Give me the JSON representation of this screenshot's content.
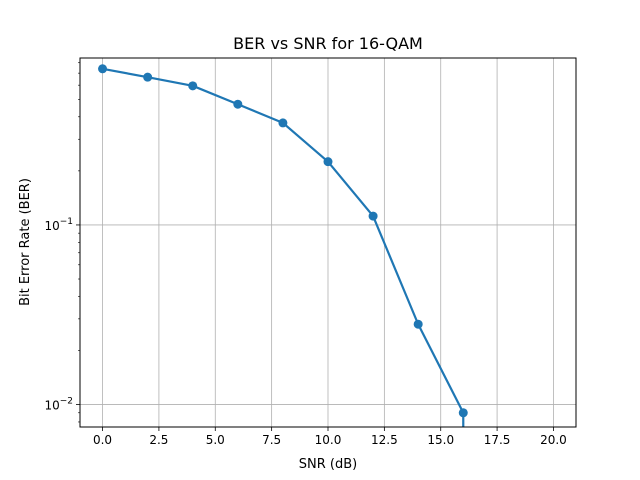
{
  "chart_data": {
    "type": "line",
    "title": "BER vs SNR for 16-QAM",
    "xlabel": "SNR (dB)",
    "ylabel": "Bit Error Rate (BER)",
    "y_scale": "log",
    "grid": true,
    "xlim": [
      -1,
      21
    ],
    "ylim": [
      0.0075,
      0.85
    ],
    "x_ticks": [
      0,
      2.5,
      5,
      7.5,
      10,
      12.5,
      15,
      17.5,
      20
    ],
    "x_tick_labels": [
      "0.0",
      "2.5",
      "5.0",
      "7.5",
      "10.0",
      "12.5",
      "15.0",
      "17.5",
      "20.0"
    ],
    "y_ticks": [
      0.01,
      0.1
    ],
    "y_tick_labels": [
      {
        "base": "10",
        "exp": "−2"
      },
      {
        "base": "10",
        "exp": "−1"
      }
    ],
    "series": [
      {
        "color": "#1f77b4",
        "marker": "circle",
        "x": [
          0,
          2,
          4,
          6,
          8,
          10,
          12,
          14,
          16,
          18,
          20
        ],
        "y": [
          0.74,
          0.665,
          0.595,
          0.47,
          0.37,
          0.225,
          0.112,
          0.028,
          0.009,
          0,
          0
        ]
      }
    ]
  }
}
